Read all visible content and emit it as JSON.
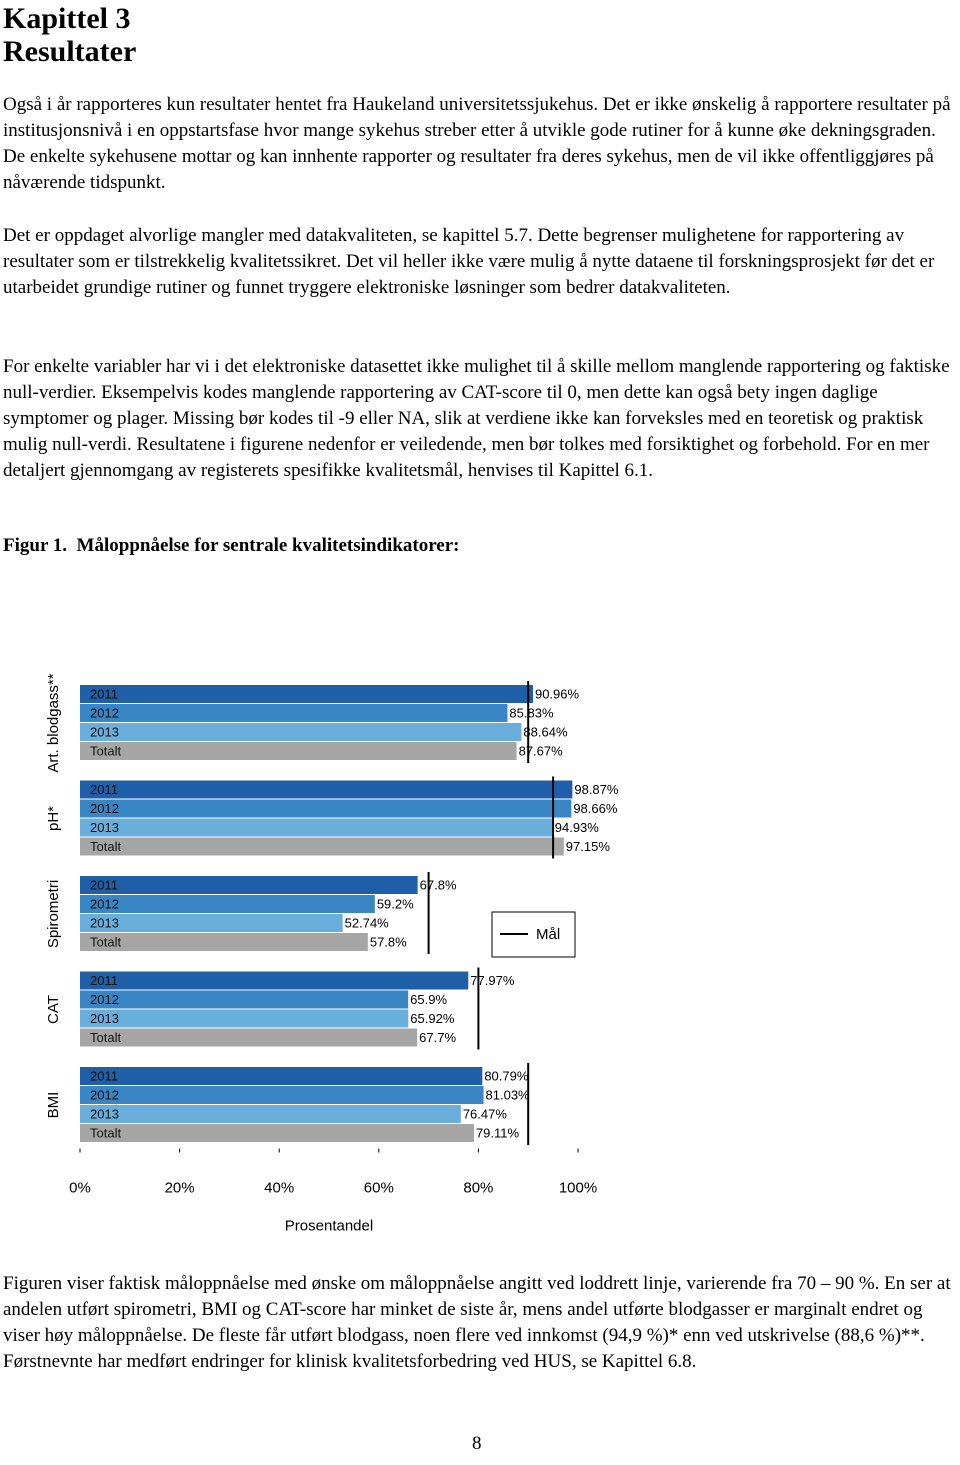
{
  "heading": {
    "chapter": "Kapittel 3",
    "title": "Resultater"
  },
  "paragraphs": [
    "Også i år rapporteres kun resultater hentet fra Haukeland universitetssjukehus. Det er ikke ønskelig å rapportere resultater på institusjonsnivå i en oppstartsfase hvor mange sykehus streber etter å utvikle gode rutiner for å kunne øke dekningsgraden. De enkelte sykehusene mottar og kan innhente rapporter og resultater fra deres sykehus, men de vil ikke offentliggjøres på nåværende tidspunkt.",
    "Det er oppdaget alvorlige mangler med datakvaliteten, se kapittel 5.7. Dette begrenser mulighetene for rapportering av resultater som er tilstrekkelig kvalitetssikret. Det vil heller ikke være mulig å nytte dataene til forskningsprosjekt før det er utarbeidet grundige rutiner og funnet tryggere elektroniske løsninger som bedrer datakvaliteten.",
    "For enkelte variabler har vi i det elektroniske datasettet ikke mulighet til å skille mellom manglende rapportering og faktiske null-verdier. Eksempelvis kodes manglende rapportering av CAT-score til 0, men dette kan også bety ingen daglige symptomer og plager. Missing bør kodes til -9 eller NA, slik at verdiene ikke kan forveksles med en teoretisk og praktisk mulig null-verdi. Resultatene i figurene nedenfor er veiledende, men bør tolkes med forsiktighet og forbehold. For en mer detaljert gjennomgang av registerets spesifikke kvalitetsmål, henvises til Kapittel 6.1."
  ],
  "figure_caption": "Figur 1.  Måloppnåelse for sentrale kvalitetsindikatorer:",
  "chart_data": {
    "type": "bar",
    "orientation": "horizontal",
    "categories": [
      "Art. blodgass**",
      "pH*",
      "Spirometri",
      "CAT",
      "BMI"
    ],
    "series": [
      {
        "name": "2011",
        "color": "#1f5fa8",
        "values": [
          90.96,
          98.87,
          67.8,
          77.97,
          80.79
        ],
        "value_labels": [
          "90.96%",
          "98.87%",
          "67.8%",
          "77.97%",
          "80.79%"
        ]
      },
      {
        "name": "2012",
        "color": "#3a86c4",
        "values": [
          85.83,
          98.66,
          59.2,
          65.9,
          81.03
        ],
        "value_labels": [
          "85.83%",
          "98.66%",
          "59.2%",
          "65.9%",
          "81.03%"
        ]
      },
      {
        "name": "2013",
        "color": "#6aaedc",
        "values": [
          88.64,
          94.93,
          52.74,
          65.92,
          76.47
        ],
        "value_labels": [
          "88.64%",
          "94.93%",
          "52.74%",
          "65.92%",
          "76.47%"
        ]
      },
      {
        "name": "Totalt",
        "color": "#a6a6a6",
        "values": [
          87.67,
          97.15,
          57.8,
          67.7,
          79.11
        ],
        "value_labels": [
          "87.67%",
          "97.15%",
          "57.8%",
          "67.7%",
          "79.11%"
        ]
      }
    ],
    "targets": {
      "name": "Mål",
      "color": "#000000",
      "values": [
        90,
        95,
        70,
        80,
        90
      ]
    },
    "xlabel": "Prosentandel",
    "xlim": [
      0,
      100
    ],
    "xticks": [
      {
        "value": 0,
        "label": "0%"
      },
      {
        "value": 20,
        "label": "20%"
      },
      {
        "value": 40,
        "label": "40%"
      },
      {
        "value": 60,
        "label": "60%"
      },
      {
        "value": 80,
        "label": "80%"
      },
      {
        "value": 100,
        "label": "100%"
      }
    ]
  },
  "closing_paragraph": "Figuren viser faktisk måloppnåelse med ønske om måloppnåelse angitt ved loddrett linje, varierende fra 70 – 90 %. En ser at andelen utført spirometri, BMI og CAT-score har minket de siste år, mens andel utførte blodgasser er marginalt endret og viser høy måloppnåelse. De fleste får utført blodgass, noen flere ved innkomst (94,9 %)* enn ved utskrivelse (88,6 %)**. Førstnevnte har medført endringer for klinisk kvalitetsforbedring ved HUS, se Kapittel 6.8.",
  "page_number": "8"
}
